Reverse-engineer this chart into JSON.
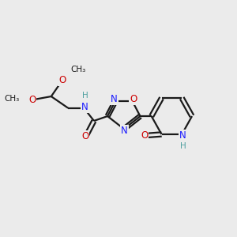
{
  "background_color": "#ebebeb",
  "figsize": [
    3.0,
    3.0
  ],
  "dpi": 100,
  "colors": {
    "C": "#1a1a1a",
    "N": "#1a1aff",
    "O": "#cc0000",
    "H": "#4fa0a0",
    "bond": "#1a1a1a"
  },
  "bond_lw": 1.6,
  "font_size": 8.5,
  "font_size_small": 7.5
}
